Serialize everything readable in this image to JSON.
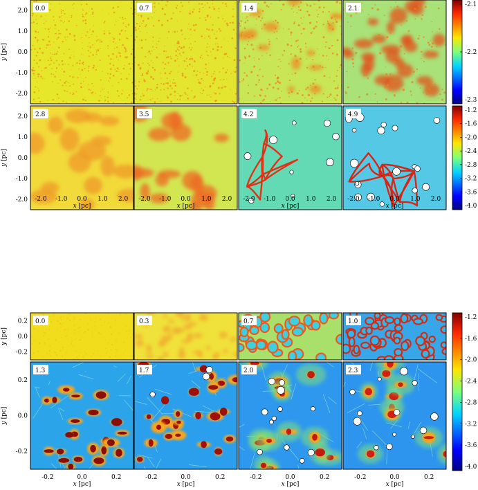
{
  "chart_data": [
    {
      "type": "heatmap",
      "title": "",
      "xlabel": "x [pc]",
      "ylabel": "y [pc]",
      "xlim": [
        -2.6,
        2.6
      ],
      "ylim": [
        -2.6,
        2.6
      ],
      "xticks": [
        "-2.0",
        "-1.0",
        "0.0",
        "1.0",
        "2.0"
      ],
      "yticks": [
        "2.0",
        "1.0",
        "0.0",
        "-1.0",
        "-2.0"
      ],
      "rows": [
        {
          "panels": [
            "0.0",
            "0.7",
            "1.4",
            "2.1"
          ],
          "colorbar": {
            "ticks": [
              "-2.1",
              "-2.2",
              "-2.3"
            ],
            "range": [
              -2.35,
              -2.05
            ]
          }
        },
        {
          "panels": [
            "2.8",
            "3.5",
            "4.2",
            "4.9"
          ],
          "colorbar": {
            "ticks": [
              "-1.2",
              "-1.6",
              "-2.0",
              "-2.4",
              "-2.8",
              "-3.2",
              "-3.6",
              "-4.0"
            ],
            "range": [
              -4.0,
              -1.2
            ]
          }
        }
      ]
    },
    {
      "type": "heatmap",
      "title": "",
      "xlabel": "x [pc]",
      "ylabel": "y [pc]",
      "xlim": [
        -0.4,
        0.4
      ],
      "ylim": [
        -0.4,
        0.4
      ],
      "xticks": [
        "-0.2",
        "0.0",
        "0.2"
      ],
      "yticks": [
        "0.2",
        "0.0",
        "-0.2"
      ],
      "rows": [
        {
          "panels": [
            "0.0",
            "0.3",
            "0.7",
            "1.0"
          ]
        },
        {
          "panels": [
            "1.3",
            "1.7",
            "2.0",
            "2.3"
          ]
        }
      ],
      "colorbar": {
        "ticks": [
          "-1.2",
          "-1.6",
          "-2.0",
          "-2.4",
          "-2.8",
          "-3.2",
          "-3.6",
          "-4.0"
        ],
        "range": [
          -4.0,
          -1.2
        ]
      }
    }
  ]
}
